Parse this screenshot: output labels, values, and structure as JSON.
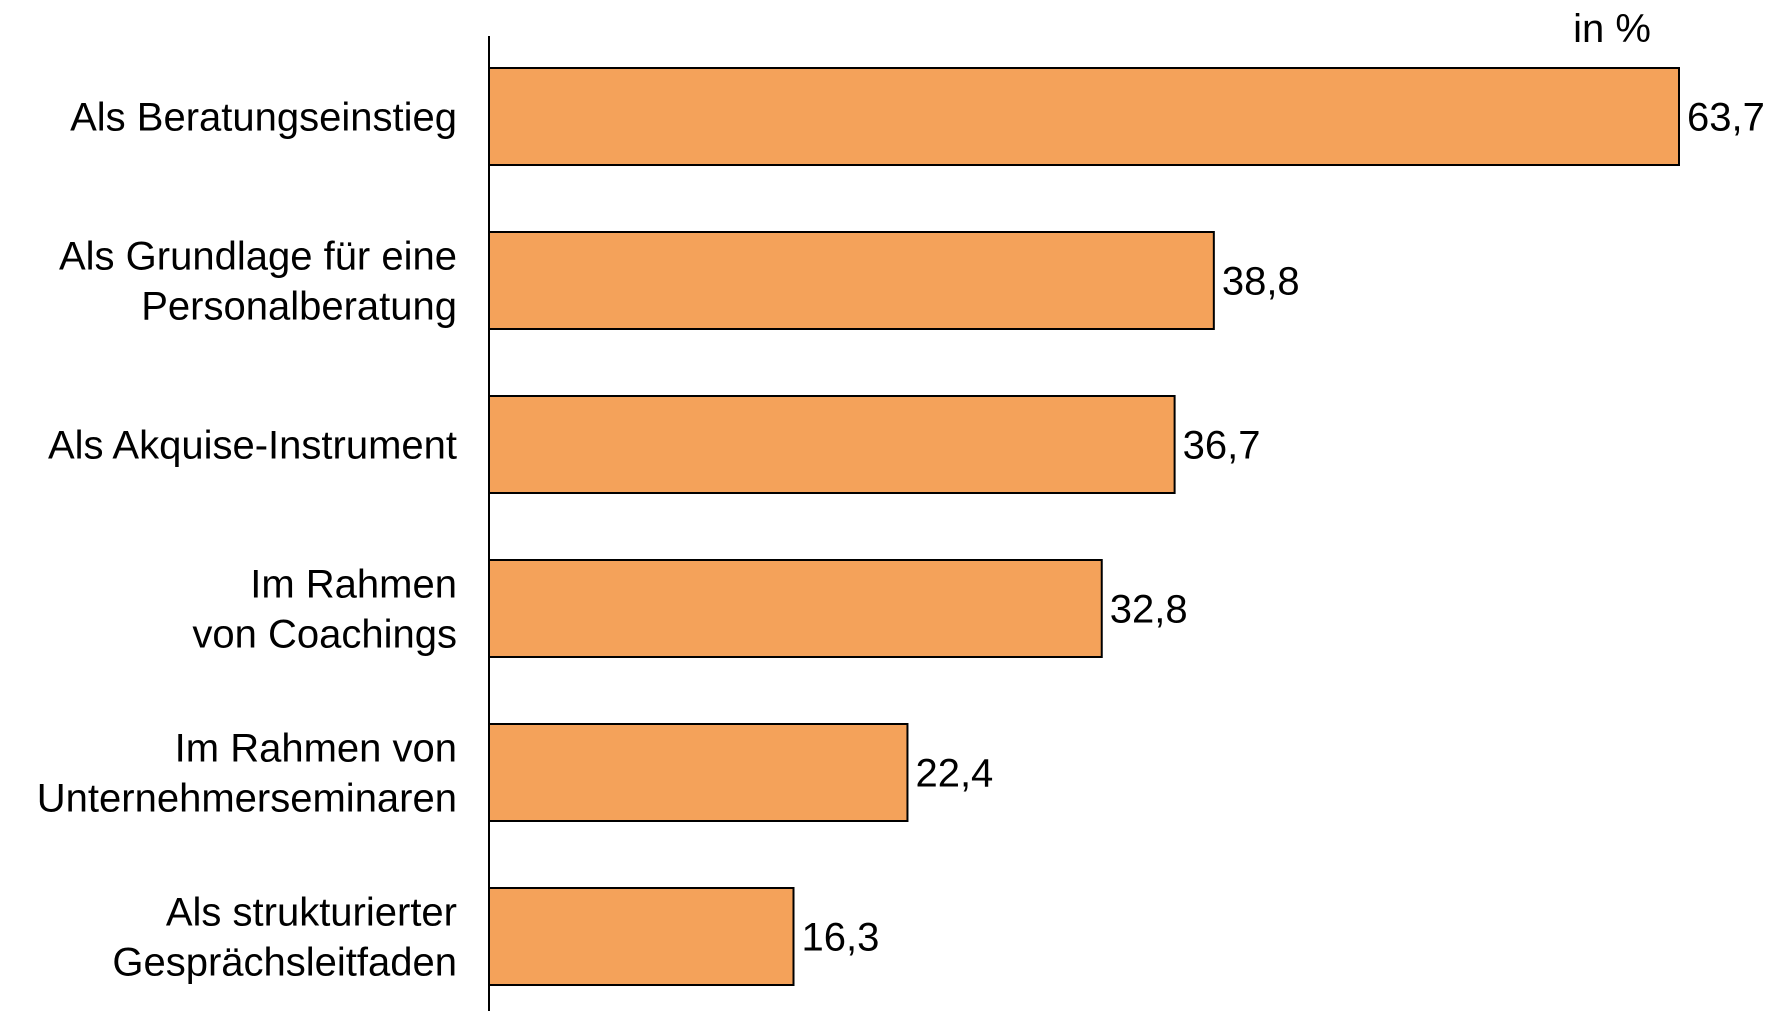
{
  "chart_data": {
    "type": "bar",
    "orientation": "horizontal",
    "unit": "in %",
    "categories": [
      [
        "Als Beratungseinstieg"
      ],
      [
        "Als Grundlage für eine",
        "Personalberatung"
      ],
      [
        "Als Akquise-Instrument"
      ],
      [
        "Im Rahmen",
        "von Coachings"
      ],
      [
        "Im Rahmen von",
        "Unternehmerseminaren"
      ],
      [
        "Als strukturierter",
        "Gesprächsleitfaden"
      ]
    ],
    "values": [
      63.7,
      38.8,
      36.7,
      32.8,
      22.4,
      16.3
    ],
    "value_labels": [
      "63,7",
      "38,8",
      "36,7",
      "32,8",
      "22,4",
      "16,3"
    ],
    "bar_color": "#F4A25A",
    "grid": false
  }
}
